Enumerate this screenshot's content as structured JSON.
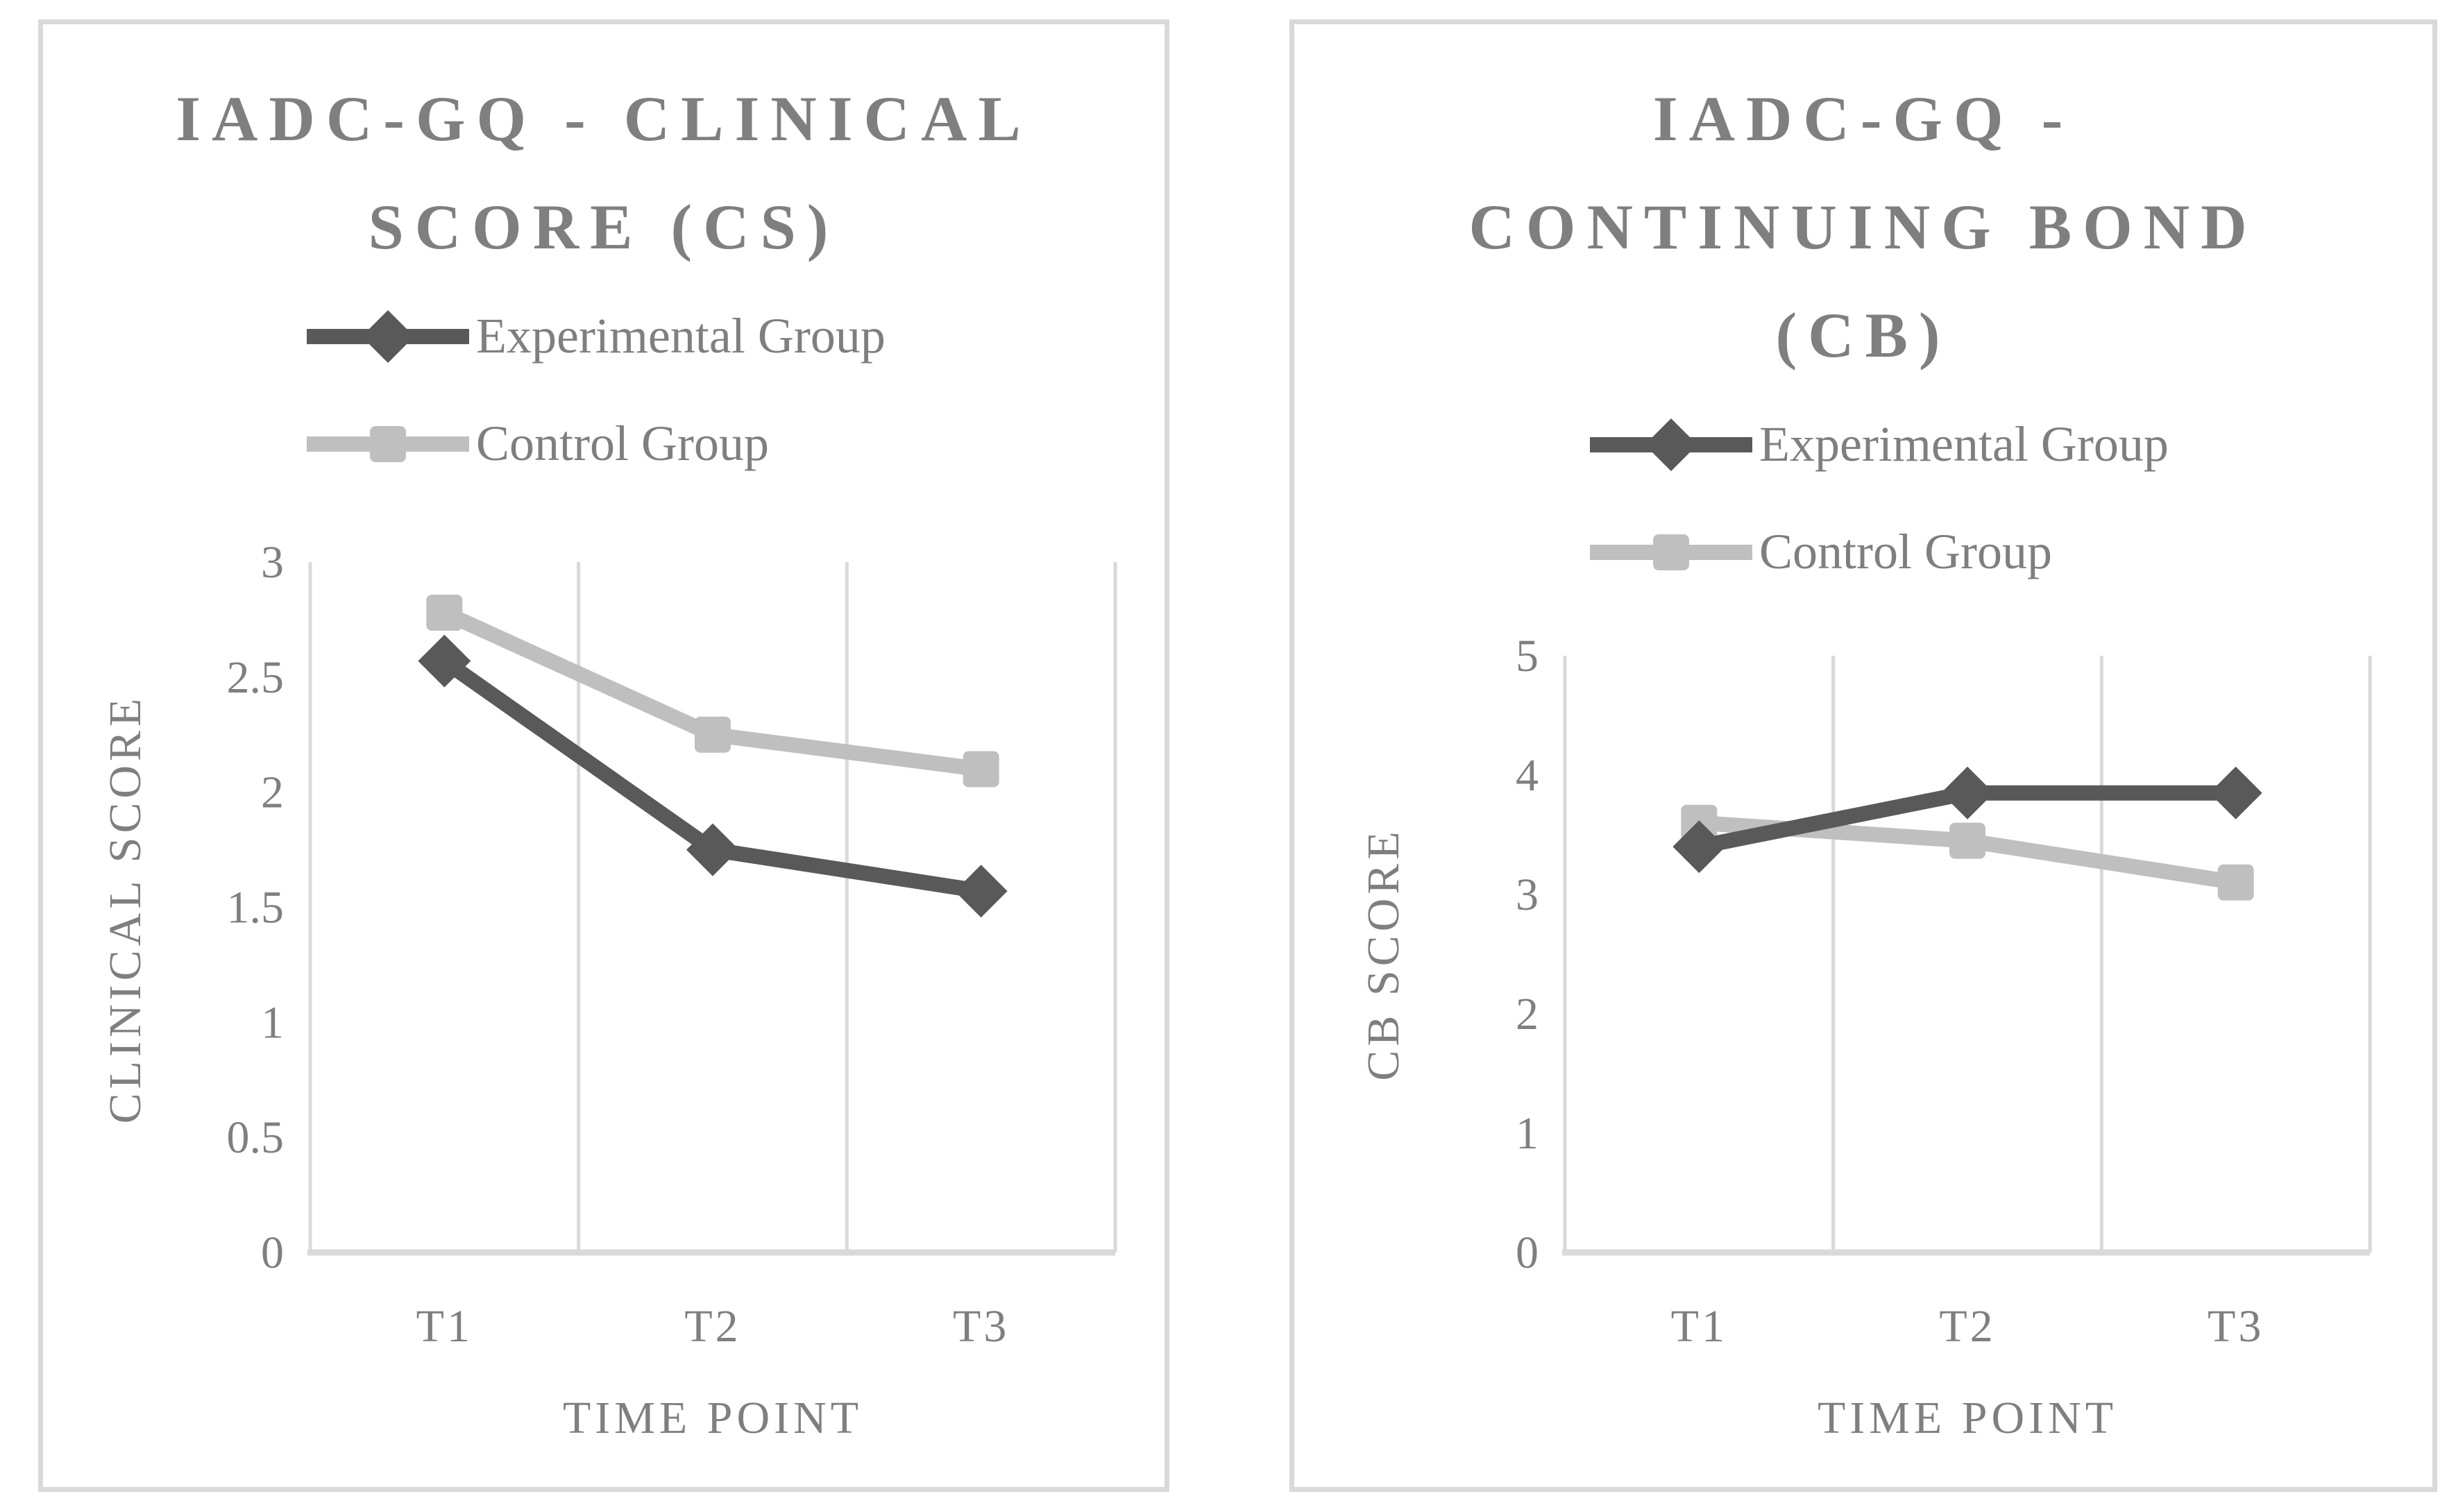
{
  "figure": {
    "background": "#ffffff",
    "panel_border_color": "#d9d9d9",
    "text_color": "#7f7f7f",
    "gridline_color": "#d9d9d9"
  },
  "chart_data": [
    {
      "type": "line",
      "title": "IADC-GQ - CLINICAL SCORE (CS)",
      "title_lines": [
        "IADC-GQ - CLINICAL",
        "SCORE (CS)"
      ],
      "xlabel": "TIME POINT",
      "ylabel": "CLINICAL SCORE",
      "categories": [
        "T1",
        "T2",
        "T3"
      ],
      "series": [
        {
          "name": "Experimental Group",
          "marker": "diamond",
          "color": "#595959",
          "values": [
            2.57,
            1.75,
            1.57
          ]
        },
        {
          "name": "Control Group",
          "marker": "square",
          "color": "#bfbfbf",
          "values": [
            2.78,
            2.25,
            2.1
          ]
        }
      ],
      "ylim": [
        0,
        3
      ],
      "ytick_step": 0.5,
      "ytick_labels_top_to_bottom": [
        "3",
        "2.5",
        "2",
        "1.5",
        "1",
        "0.5",
        "0"
      ],
      "legend_position": "top-left-stacked",
      "grid": "vertical-only"
    },
    {
      "type": "line",
      "title": "IADC-GQ - CONTINUING BOND (CB)",
      "title_lines": [
        "IADC-GQ -",
        "CONTINUING BOND",
        "(CB)"
      ],
      "xlabel": "TIME POINT",
      "ylabel": "CB SCORE",
      "categories": [
        "T1",
        "T2",
        "T3"
      ],
      "series": [
        {
          "name": "Experimental Group",
          "marker": "diamond",
          "color": "#595959",
          "values": [
            3.4,
            3.85,
            3.85
          ]
        },
        {
          "name": "Control Group",
          "marker": "square",
          "color": "#bfbfbf",
          "values": [
            3.6,
            3.45,
            3.1
          ]
        }
      ],
      "ylim": [
        0,
        5
      ],
      "ytick_step": 1,
      "ytick_labels_top_to_bottom": [
        "5",
        "4",
        "3",
        "2",
        "1",
        "0"
      ],
      "legend_position": "top-left-stacked",
      "grid": "vertical-only"
    }
  ]
}
